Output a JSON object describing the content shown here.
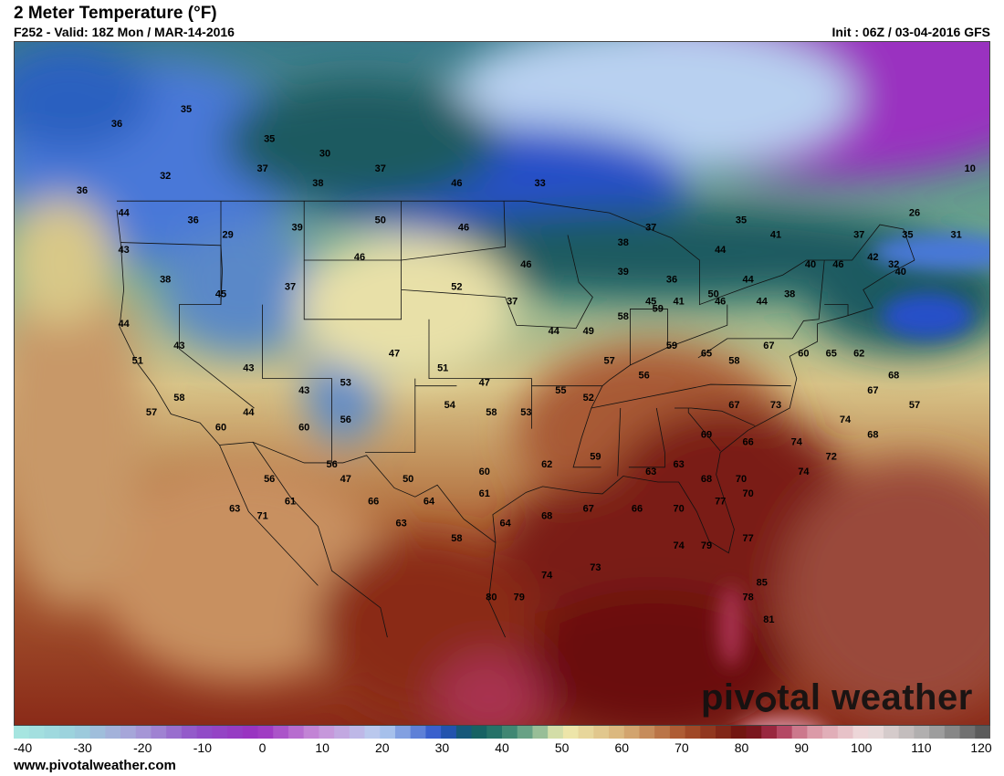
{
  "header": {
    "title": "2 Meter Temperature (°F)",
    "subtitle": "F252 - Valid: 18Z Mon / MAR-14-2016",
    "init": "Init : 06Z / 03-04-2016 GFS"
  },
  "footer": {
    "url": "www.pivotalweather.com"
  },
  "brand": {
    "text_before": "piv",
    "text_after": "tal weather",
    "icon": "pivot-logo-icon"
  },
  "colorbar": {
    "ticks": [
      "-40",
      "-30",
      "-20",
      "-10",
      "0",
      "10",
      "20",
      "30",
      "40",
      "50",
      "60",
      "70",
      "80",
      "90",
      "100",
      "110",
      "120"
    ],
    "stops": [
      {
        "v": -40,
        "color": "#a8e8e0"
      },
      {
        "v": -30,
        "color": "#9ad0dc"
      },
      {
        "v": -20,
        "color": "#a8a0d8"
      },
      {
        "v": -10,
        "color": "#9050c8"
      },
      {
        "v": 0,
        "color": "#9a30c0"
      },
      {
        "v": 10,
        "color": "#c890d8"
      },
      {
        "v": 20,
        "color": "#b8d0f0"
      },
      {
        "v": 30,
        "color": "#2850c8"
      },
      {
        "v": 35,
        "color": "#0e5a60"
      },
      {
        "v": 40,
        "color": "#2c7a6a"
      },
      {
        "v": 45,
        "color": "#7aae8e"
      },
      {
        "v": 50,
        "color": "#f0ecb0"
      },
      {
        "v": 60,
        "color": "#d8b078"
      },
      {
        "v": 70,
        "color": "#a8502a"
      },
      {
        "v": 80,
        "color": "#6a0c0c"
      },
      {
        "v": 85,
        "color": "#a83050"
      },
      {
        "v": 90,
        "color": "#d890a0"
      },
      {
        "v": 100,
        "color": "#f0e0e0"
      },
      {
        "v": 110,
        "color": "#a8a8a8"
      },
      {
        "v": 120,
        "color": "#505050"
      }
    ]
  },
  "map_labels": [
    {
      "x": -124.5,
      "y": 54,
      "v": "36"
    },
    {
      "x": -119.5,
      "y": 55,
      "v": "35"
    },
    {
      "x": -113.5,
      "y": 53,
      "v": "35"
    },
    {
      "x": -109.5,
      "y": 52,
      "v": "30"
    },
    {
      "x": -105.5,
      "y": 51,
      "v": "37"
    },
    {
      "x": -100,
      "y": 50,
      "v": "46"
    },
    {
      "x": -94,
      "y": 50,
      "v": "33"
    },
    {
      "x": -114,
      "y": 51,
      "v": "37"
    },
    {
      "x": -110,
      "y": 50,
      "v": "38"
    },
    {
      "x": -121,
      "y": 50.5,
      "v": "32"
    },
    {
      "x": -127,
      "y": 49.5,
      "v": "36"
    },
    {
      "x": -124,
      "y": 48,
      "v": "44"
    },
    {
      "x": -119,
      "y": 47.5,
      "v": "36"
    },
    {
      "x": -116.5,
      "y": 46.5,
      "v": "29"
    },
    {
      "x": -111.5,
      "y": 47,
      "v": "39"
    },
    {
      "x": -105.5,
      "y": 47.5,
      "v": "50"
    },
    {
      "x": -99.5,
      "y": 47,
      "v": "46"
    },
    {
      "x": -124,
      "y": 45.5,
      "v": "43"
    },
    {
      "x": -121,
      "y": 43.5,
      "v": "38"
    },
    {
      "x": -117,
      "y": 42.5,
      "v": "45"
    },
    {
      "x": -112,
      "y": 43,
      "v": "37"
    },
    {
      "x": -107,
      "y": 45,
      "v": "46"
    },
    {
      "x": -100,
      "y": 43,
      "v": "52"
    },
    {
      "x": -95,
      "y": 44.5,
      "v": "46"
    },
    {
      "x": -124,
      "y": 40.5,
      "v": "44"
    },
    {
      "x": -123,
      "y": 38,
      "v": "51"
    },
    {
      "x": -120,
      "y": 39,
      "v": "43"
    },
    {
      "x": -115,
      "y": 37.5,
      "v": "43"
    },
    {
      "x": -111,
      "y": 36,
      "v": "43"
    },
    {
      "x": -108,
      "y": 36.5,
      "v": "53"
    },
    {
      "x": -104.5,
      "y": 38.5,
      "v": "47"
    },
    {
      "x": -101,
      "y": 37.5,
      "v": "51"
    },
    {
      "x": -98,
      "y": 36.5,
      "v": "47"
    },
    {
      "x": -96,
      "y": 42,
      "v": "37"
    },
    {
      "x": -93,
      "y": 40,
      "v": "44"
    },
    {
      "x": -90.5,
      "y": 40,
      "v": "49"
    },
    {
      "x": -88,
      "y": 41,
      "v": "58"
    },
    {
      "x": -85.5,
      "y": 41.5,
      "v": "59"
    },
    {
      "x": -81.5,
      "y": 42.5,
      "v": "50"
    },
    {
      "x": -79,
      "y": 43.5,
      "v": "44"
    },
    {
      "x": -74.5,
      "y": 44.5,
      "v": "40"
    },
    {
      "x": -72.5,
      "y": 44.5,
      "v": "46"
    },
    {
      "x": -70,
      "y": 45,
      "v": "42"
    },
    {
      "x": -68,
      "y": 44,
      "v": "40"
    },
    {
      "x": -120,
      "y": 35.5,
      "v": "58"
    },
    {
      "x": -122,
      "y": 34.5,
      "v": "57"
    },
    {
      "x": -117,
      "y": 33.5,
      "v": "60"
    },
    {
      "x": -115,
      "y": 34.5,
      "v": "44"
    },
    {
      "x": -111,
      "y": 33.5,
      "v": "60"
    },
    {
      "x": -108,
      "y": 34,
      "v": "56"
    },
    {
      "x": -100.5,
      "y": 35,
      "v": "54"
    },
    {
      "x": -97.5,
      "y": 34.5,
      "v": "58"
    },
    {
      "x": -95,
      "y": 34.5,
      "v": "53"
    },
    {
      "x": -92.5,
      "y": 36,
      "v": "55"
    },
    {
      "x": -90.5,
      "y": 35.5,
      "v": "52"
    },
    {
      "x": -89,
      "y": 38,
      "v": "57"
    },
    {
      "x": -86.5,
      "y": 37,
      "v": "56"
    },
    {
      "x": -84.5,
      "y": 39,
      "v": "59"
    },
    {
      "x": -82,
      "y": 38.5,
      "v": "65"
    },
    {
      "x": -80,
      "y": 38,
      "v": "58"
    },
    {
      "x": -77.5,
      "y": 39,
      "v": "67"
    },
    {
      "x": -75,
      "y": 38.5,
      "v": "60"
    },
    {
      "x": -73,
      "y": 38.5,
      "v": "65"
    },
    {
      "x": -71,
      "y": 38.5,
      "v": "62"
    },
    {
      "x": -68.5,
      "y": 37,
      "v": "68"
    },
    {
      "x": -70,
      "y": 36,
      "v": "67"
    },
    {
      "x": -67,
      "y": 35,
      "v": "57"
    },
    {
      "x": -80,
      "y": 35,
      "v": "67"
    },
    {
      "x": -77,
      "y": 35,
      "v": "73"
    },
    {
      "x": -72,
      "y": 34,
      "v": "74"
    },
    {
      "x": -70,
      "y": 33,
      "v": "68"
    },
    {
      "x": -82,
      "y": 33,
      "v": "69"
    },
    {
      "x": -79,
      "y": 32.5,
      "v": "66"
    },
    {
      "x": -75.5,
      "y": 32.5,
      "v": "74"
    },
    {
      "x": -73,
      "y": 31.5,
      "v": "72"
    },
    {
      "x": -75,
      "y": 30.5,
      "v": "74"
    },
    {
      "x": -109,
      "y": 31,
      "v": "56"
    },
    {
      "x": -113.5,
      "y": 30,
      "v": "56"
    },
    {
      "x": -112,
      "y": 28.5,
      "v": "61"
    },
    {
      "x": -116,
      "y": 28,
      "v": "63"
    },
    {
      "x": -114,
      "y": 27.5,
      "v": "71"
    },
    {
      "x": -108,
      "y": 30,
      "v": "47"
    },
    {
      "x": -103.5,
      "y": 30,
      "v": "50"
    },
    {
      "x": -98,
      "y": 30.5,
      "v": "60"
    },
    {
      "x": -93.5,
      "y": 31,
      "v": "62"
    },
    {
      "x": -90,
      "y": 31.5,
      "v": "59"
    },
    {
      "x": -86,
      "y": 30.5,
      "v": "63"
    },
    {
      "x": -84,
      "y": 31,
      "v": "63"
    },
    {
      "x": -82,
      "y": 30,
      "v": "68"
    },
    {
      "x": -79.5,
      "y": 30,
      "v": "70"
    },
    {
      "x": -106,
      "y": 28.5,
      "v": "66"
    },
    {
      "x": -102,
      "y": 28.5,
      "v": "64"
    },
    {
      "x": -98,
      "y": 29,
      "v": "61"
    },
    {
      "x": -104,
      "y": 27,
      "v": "63"
    },
    {
      "x": -100,
      "y": 26,
      "v": "58"
    },
    {
      "x": -96.5,
      "y": 27,
      "v": "64"
    },
    {
      "x": -93.5,
      "y": 27.5,
      "v": "68"
    },
    {
      "x": -90.5,
      "y": 28,
      "v": "67"
    },
    {
      "x": -87,
      "y": 28,
      "v": "66"
    },
    {
      "x": -84,
      "y": 28,
      "v": "70"
    },
    {
      "x": -81,
      "y": 28.5,
      "v": "77"
    },
    {
      "x": -79,
      "y": 29,
      "v": "70"
    },
    {
      "x": -84,
      "y": 25.5,
      "v": "74"
    },
    {
      "x": -82,
      "y": 25.5,
      "v": "79"
    },
    {
      "x": -79,
      "y": 26,
      "v": "77"
    },
    {
      "x": -90,
      "y": 24,
      "v": "73"
    },
    {
      "x": -93.5,
      "y": 23.5,
      "v": "74"
    },
    {
      "x": -97.5,
      "y": 22,
      "v": "80"
    },
    {
      "x": -95.5,
      "y": 22,
      "v": "79"
    },
    {
      "x": -78,
      "y": 23,
      "v": "85"
    },
    {
      "x": -79,
      "y": 22,
      "v": "78"
    },
    {
      "x": -77.5,
      "y": 20.5,
      "v": "81"
    },
    {
      "x": -88,
      "y": 46,
      "v": "38"
    },
    {
      "x": -86,
      "y": 47,
      "v": "37"
    },
    {
      "x": -81,
      "y": 45.5,
      "v": "44"
    },
    {
      "x": -77,
      "y": 46.5,
      "v": "41"
    },
    {
      "x": -79.5,
      "y": 47.5,
      "v": "35"
    },
    {
      "x": -88,
      "y": 44,
      "v": "39"
    },
    {
      "x": -84.5,
      "y": 43.5,
      "v": "36"
    },
    {
      "x": -86,
      "y": 42,
      "v": "45"
    },
    {
      "x": -84,
      "y": 42,
      "v": "41"
    },
    {
      "x": -81,
      "y": 42,
      "v": "46"
    },
    {
      "x": -78,
      "y": 42,
      "v": "44"
    },
    {
      "x": -76,
      "y": 42.5,
      "v": "38"
    },
    {
      "x": -71,
      "y": 46.5,
      "v": "37"
    },
    {
      "x": -67.5,
      "y": 46.5,
      "v": "35"
    },
    {
      "x": -67,
      "y": 48,
      "v": "26"
    },
    {
      "x": -64,
      "y": 46.5,
      "v": "31"
    },
    {
      "x": -68.5,
      "y": 44.5,
      "v": "32"
    },
    {
      "x": -63,
      "y": 51,
      "v": "10"
    }
  ]
}
